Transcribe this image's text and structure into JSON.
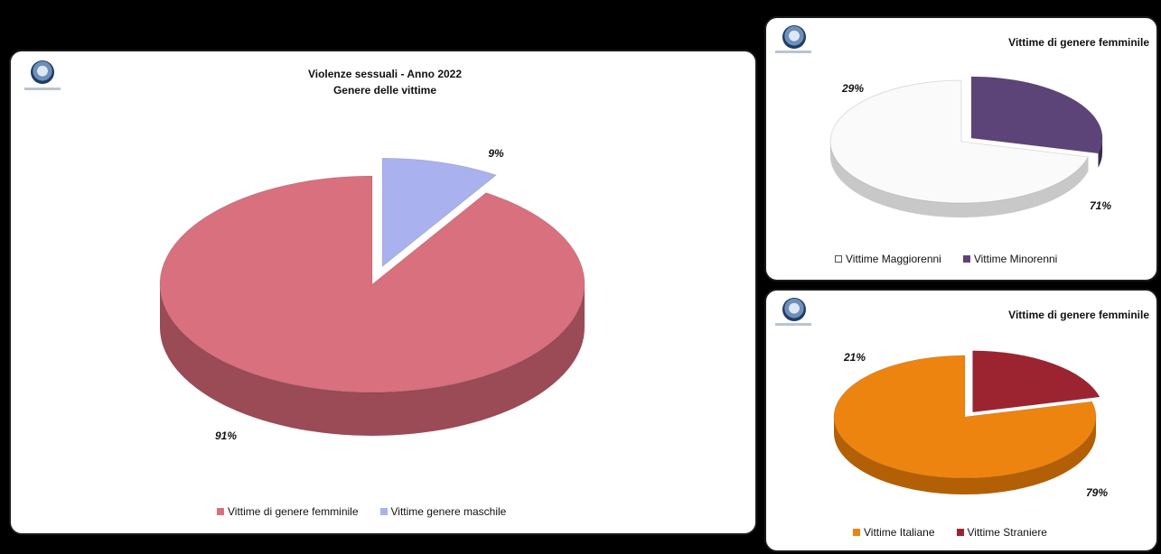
{
  "chart_data": [
    {
      "type": "pie",
      "title": "Violenze sessuali - Anno 2022",
      "subtitle": "Genere delle vittime",
      "categories": [
        "Vittime di genere femminile",
        "Vittime genere maschile"
      ],
      "values": [
        91,
        9
      ],
      "labels": [
        "91%",
        "9%"
      ],
      "colors": [
        "#d9707d",
        "#a9b1ef"
      ],
      "side_colors": [
        "#9a4b55",
        "#6f77b3"
      ],
      "legend": "bottom"
    },
    {
      "type": "pie",
      "title": "Vittime di genere femminile",
      "categories": [
        "Vittime Maggiorenni",
        "Vittime Minorenni"
      ],
      "values": [
        71,
        29
      ],
      "labels": [
        "71%",
        "29%"
      ],
      "colors": [
        "#fafafa",
        "#5c4478"
      ],
      "side_colors": [
        "#c8c8c8",
        "#3a2a4e"
      ],
      "legend": "bottom"
    },
    {
      "type": "pie",
      "title": "Vittime di genere femminile",
      "categories": [
        "Vittime Italiane",
        "Vittime Straniere"
      ],
      "values": [
        79,
        21
      ],
      "labels": [
        "79%",
        "21%"
      ],
      "colors": [
        "#ee8410",
        "#9c2431"
      ],
      "side_colors": [
        "#b35f06",
        "#6a141e"
      ],
      "legend": "bottom"
    }
  ]
}
